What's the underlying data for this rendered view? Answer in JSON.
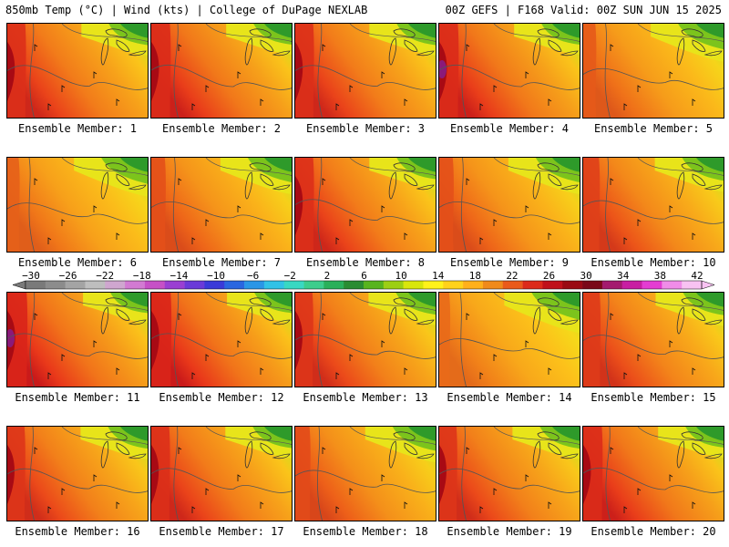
{
  "header": {
    "left": "850mb Temp (°C) | Wind (kts) | College of DuPage NEXLAB",
    "right": "00Z GEFS | F168 Valid: 00Z SUN JUN 15 2025"
  },
  "colorbar": {
    "labels": [
      "−30",
      "−26",
      "−22",
      "−18",
      "−14",
      "−10",
      "−6",
      "−2",
      "2",
      "6",
      "10",
      "14",
      "18",
      "22",
      "26",
      "30",
      "34",
      "38",
      "42"
    ],
    "colors": [
      "#7a7a7a",
      "#8c8c8c",
      "#a4a4a4",
      "#bebebe",
      "#cfa6cf",
      "#d27ad2",
      "#c650c6",
      "#9a3fd2",
      "#6a3ad8",
      "#3a3ad8",
      "#2a66e0",
      "#2a96e6",
      "#31c2e6",
      "#39d8c2",
      "#3ccd8c",
      "#2ab05a",
      "#2a8c32",
      "#58b41e",
      "#9ccf14",
      "#d8e60c",
      "#fff21a",
      "#ffd21a",
      "#ffb01a",
      "#f08a1a",
      "#ea5a1a",
      "#dc2a1a",
      "#c0101a",
      "#9a0a14",
      "#7a0818",
      "#a41a6e",
      "#c81ea2",
      "#e43cd2",
      "#f08ce8",
      "#f8c2f2"
    ]
  },
  "panels": [
    {
      "caption": "Ensemble Member: 1",
      "heat": 0.85,
      "blob": null
    },
    {
      "caption": "Ensemble Member: 2",
      "heat": 0.9,
      "blob": null
    },
    {
      "caption": "Ensemble Member: 3",
      "heat": 0.85,
      "blob": null
    },
    {
      "caption": "Ensemble Member: 4",
      "heat": 0.9,
      "blob": "purple"
    },
    {
      "caption": "Ensemble Member: 5",
      "heat": 0.45,
      "blob": null
    },
    {
      "caption": "Ensemble Member: 6",
      "heat": 0.4,
      "blob": null
    },
    {
      "caption": "Ensemble Member: 7",
      "heat": 0.55,
      "blob": null
    },
    {
      "caption": "Ensemble Member: 8",
      "heat": 0.85,
      "blob": null
    },
    {
      "caption": "Ensemble Member: 9",
      "heat": 0.55,
      "blob": null
    },
    {
      "caption": "Ensemble Member: 10",
      "heat": 0.7,
      "blob": null
    },
    {
      "caption": "Ensemble Member: 11",
      "heat": 0.95,
      "blob": "purple"
    },
    {
      "caption": "Ensemble Member: 12",
      "heat": 0.95,
      "blob": null
    },
    {
      "caption": "Ensemble Member: 13",
      "heat": 0.8,
      "blob": null
    },
    {
      "caption": "Ensemble Member: 14",
      "heat": 0.3,
      "blob": null
    },
    {
      "caption": "Ensemble Member: 15",
      "heat": 0.75,
      "blob": null
    },
    {
      "caption": "Ensemble Member: 16",
      "heat": 0.8,
      "blob": null
    },
    {
      "caption": "Ensemble Member: 17",
      "heat": 0.85,
      "blob": null
    },
    {
      "caption": "Ensemble Member: 18",
      "heat": 0.6,
      "blob": null
    },
    {
      "caption": "Ensemble Member: 19",
      "heat": 0.8,
      "blob": null
    },
    {
      "caption": "Ensemble Member: 20",
      "heat": 0.9,
      "blob": null
    }
  ]
}
